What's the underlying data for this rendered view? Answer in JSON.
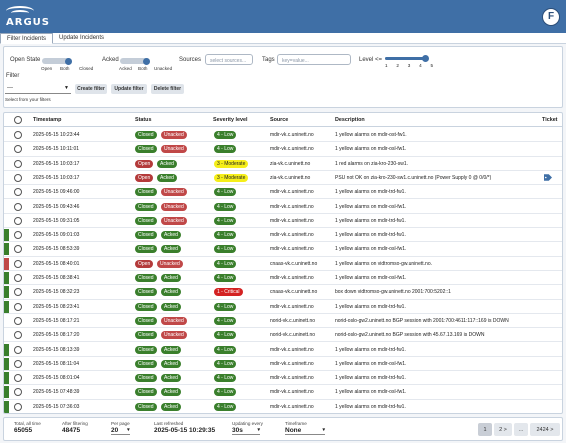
{
  "app": {
    "name": "ARGUS",
    "user_initial": "F"
  },
  "tabs": [
    {
      "label": "Filter Incidents",
      "active": true
    },
    {
      "label": "Update Incidents",
      "active": false
    }
  ],
  "filters": {
    "open_state": {
      "label": "Open State",
      "options": [
        "Open",
        "Both",
        "Closed"
      ],
      "selected": "Both"
    },
    "acked": {
      "label": "Acked",
      "options": [
        "Acked",
        "Both",
        "Unacked"
      ],
      "selected": "Both"
    },
    "sources": {
      "label": "Sources",
      "placeholder": "select sources..."
    },
    "tags": {
      "label": "Tags",
      "placeholder": "key=value..."
    },
    "level": {
      "label": "Level <=",
      "levels": [
        "1",
        "2",
        "3",
        "4",
        "5"
      ],
      "selected": 5
    },
    "filter_label": "Filter",
    "filter_select_value": "---",
    "buttons": [
      "Create filter",
      "Update filter",
      "Delete filter"
    ],
    "hint": "Select from your filters"
  },
  "table": {
    "columns": [
      "Timestamp",
      "Status",
      "Severity level",
      "Source",
      "Description",
      "Ticket"
    ],
    "rows": [
      {
        "ts": "2025-05-15 10:23:44",
        "state": "Closed",
        "ack": "Unacked",
        "sev": "4 - Low",
        "sev_level": 4,
        "source": "mdir-vk.c.uninett.no",
        "desc": "1 yellow alarms on mdir-ost-fw1.",
        "ackbar": "",
        "tag": false
      },
      {
        "ts": "2025-05-15 10:11:01",
        "state": "Closed",
        "ack": "Unacked",
        "sev": "4 - Low",
        "sev_level": 4,
        "source": "mdir-vk.c.uninett.no",
        "desc": "1 yellow alarms on mdir-osl-fw1.",
        "ackbar": "",
        "tag": false
      },
      {
        "ts": "2025-05-15 10:03:17",
        "state": "Open",
        "ack": "Acked",
        "sev": "3 - Moderate",
        "sev_level": 3,
        "source": "zia-vk.c.uninett.no",
        "desc": "1 red alarms on zia-kro-230-sw1.",
        "ackbar": "",
        "tag": false
      },
      {
        "ts": "2025-05-15 10:03:17",
        "state": "Open",
        "ack": "Acked",
        "sev": "3 - Moderate",
        "sev_level": 3,
        "source": "zia-vk.c.uninett.no",
        "desc": "PSU not OK on zia-kro-230-sw1.c.uninett.no (Power Supply 0 @ 0/0/*)",
        "ackbar": "",
        "tag": true
      },
      {
        "ts": "2025-05-15 09:46:00",
        "state": "Closed",
        "ack": "Unacked",
        "sev": "4 - Low",
        "sev_level": 4,
        "source": "mdir-vk.c.uninett.no",
        "desc": "1 yellow alarms on mdir-trd-fw1.",
        "ackbar": "",
        "tag": false
      },
      {
        "ts": "2025-05-15 09:43:46",
        "state": "Closed",
        "ack": "Unacked",
        "sev": "4 - Low",
        "sev_level": 4,
        "source": "mdir-vk.c.uninett.no",
        "desc": "1 yellow alarms on mdir-osl-fw1.",
        "ackbar": "",
        "tag": false
      },
      {
        "ts": "2025-05-15 09:31:05",
        "state": "Closed",
        "ack": "Unacked",
        "sev": "4 - Low",
        "sev_level": 4,
        "source": "mdir-vk.c.uninett.no",
        "desc": "1 yellow alarms on mdir-trd-fw1.",
        "ackbar": "",
        "tag": false
      },
      {
        "ts": "2025-05-15 09:01:03",
        "state": "Closed",
        "ack": "Acked",
        "sev": "4 - Low",
        "sev_level": 4,
        "source": "mdir-vk.c.uninett.no",
        "desc": "1 yellow alarms on mdir-trd-fw1.",
        "ackbar": "#3a7f2c",
        "tag": false
      },
      {
        "ts": "2025-05-15 08:53:39",
        "state": "Closed",
        "ack": "Acked",
        "sev": "4 - Low",
        "sev_level": 4,
        "source": "mdir-vk.c.uninett.no",
        "desc": "1 yellow alarms on mdir-osl-fw1.",
        "ackbar": "#3a7f2c",
        "tag": false
      },
      {
        "ts": "2025-05-15 08:40:01",
        "state": "Open",
        "ack": "Unacked",
        "sev": "4 - Low",
        "sev_level": 4,
        "source": "cnaas-vk.c.uninett.no",
        "desc": "1 yellow alarms on vidtromso-gw.uninett.no.",
        "ackbar": "#c04848",
        "tag": false
      },
      {
        "ts": "2025-05-15 08:38:41",
        "state": "Closed",
        "ack": "Acked",
        "sev": "4 - Low",
        "sev_level": 4,
        "source": "mdir-vk.c.uninett.no",
        "desc": "1 yellow alarms on mdir-osl-fw1.",
        "ackbar": "#3a7f2c",
        "tag": false
      },
      {
        "ts": "2025-05-15 08:32:23",
        "state": "Closed",
        "ack": "Acked",
        "sev": "1 - Critical",
        "sev_level": 1,
        "source": "cnaas-vk.c.uninett.no",
        "desc": "box down vidtromso-gw.uninett.no 2001:700:5202::1",
        "ackbar": "#3a7f2c",
        "tag": false
      },
      {
        "ts": "2025-05-15 08:23:41",
        "state": "Closed",
        "ack": "Acked",
        "sev": "4 - Low",
        "sev_level": 4,
        "source": "mdir-vk.c.uninett.no",
        "desc": "1 yellow alarms on mdir-trd-fw1.",
        "ackbar": "#3a7f2c",
        "tag": false
      },
      {
        "ts": "2025-05-15 08:17:21",
        "state": "Closed",
        "ack": "Unacked",
        "sev": "4 - Low",
        "sev_level": 4,
        "source": "norid-vk.c.uninett.no",
        "desc": "norid-oslo-gw2.uninett.no BGP session with 2001:700:4611:117::169 is DOWN",
        "ackbar": "",
        "tag": false
      },
      {
        "ts": "2025-05-15 08:17:20",
        "state": "Closed",
        "ack": "Unacked",
        "sev": "4 - Low",
        "sev_level": 4,
        "source": "norid-vk.c.uninett.no",
        "desc": "norid-oslo-gw2.uninett.no BGP session with 45.67.13.169 is DOWN",
        "ackbar": "",
        "tag": false
      },
      {
        "ts": "2025-05-15 08:13:39",
        "state": "Closed",
        "ack": "Acked",
        "sev": "4 - Low",
        "sev_level": 4,
        "source": "mdir-vk.c.uninett.no",
        "desc": "1 yellow alarms on mdir-trd-fw1.",
        "ackbar": "#3a7f2c",
        "tag": false
      },
      {
        "ts": "2025-05-15 08:11:04",
        "state": "Closed",
        "ack": "Acked",
        "sev": "4 - Low",
        "sev_level": 4,
        "source": "mdir-vk.c.uninett.no",
        "desc": "1 yellow alarms on mdir-osl-fw1.",
        "ackbar": "#3a7f2c",
        "tag": false
      },
      {
        "ts": "2025-05-15 08:01:04",
        "state": "Closed",
        "ack": "Acked",
        "sev": "4 - Low",
        "sev_level": 4,
        "source": "mdir-vk.c.uninett.no",
        "desc": "1 yellow alarms on mdir-trd-fw1.",
        "ackbar": "#3a7f2c",
        "tag": false
      },
      {
        "ts": "2025-05-15 07:48:39",
        "state": "Closed",
        "ack": "Acked",
        "sev": "4 - Low",
        "sev_level": 4,
        "source": "mdir-vk.c.uninett.no",
        "desc": "1 yellow alarms on mdir-osl-fw1.",
        "ackbar": "#3a7f2c",
        "tag": false
      },
      {
        "ts": "2025-05-15 07:36:03",
        "state": "Closed",
        "ack": "Acked",
        "sev": "4 - Low",
        "sev_level": 4,
        "source": "mdir-vk.c.uninett.no",
        "desc": "1 yellow alarms on mdir-trd-fw1.",
        "ackbar": "#3a7f2c",
        "tag": false
      }
    ]
  },
  "footer": {
    "total_label": "Total, all time",
    "total_value": "65055",
    "after_label": "After filtering",
    "after_value": "48475",
    "perpage_label": "Per page",
    "perpage_value": "20",
    "refreshed_label": "Last refreshed",
    "refreshed_value": "2025-05-15 10:29:35",
    "updating_label": "Updating every",
    "updating_value": "30s",
    "timeframe_label": "Timeframe",
    "timeframe_value": "None",
    "pages": [
      "1",
      "2 >",
      "...",
      "2424 >"
    ]
  },
  "colors": {
    "header": "#3f6fa6",
    "closed": "#3a7f2c",
    "open": "#b43a3a",
    "low": "#3a7f2c",
    "moderate": "#f5ee1a",
    "critical": "#d32222"
  }
}
